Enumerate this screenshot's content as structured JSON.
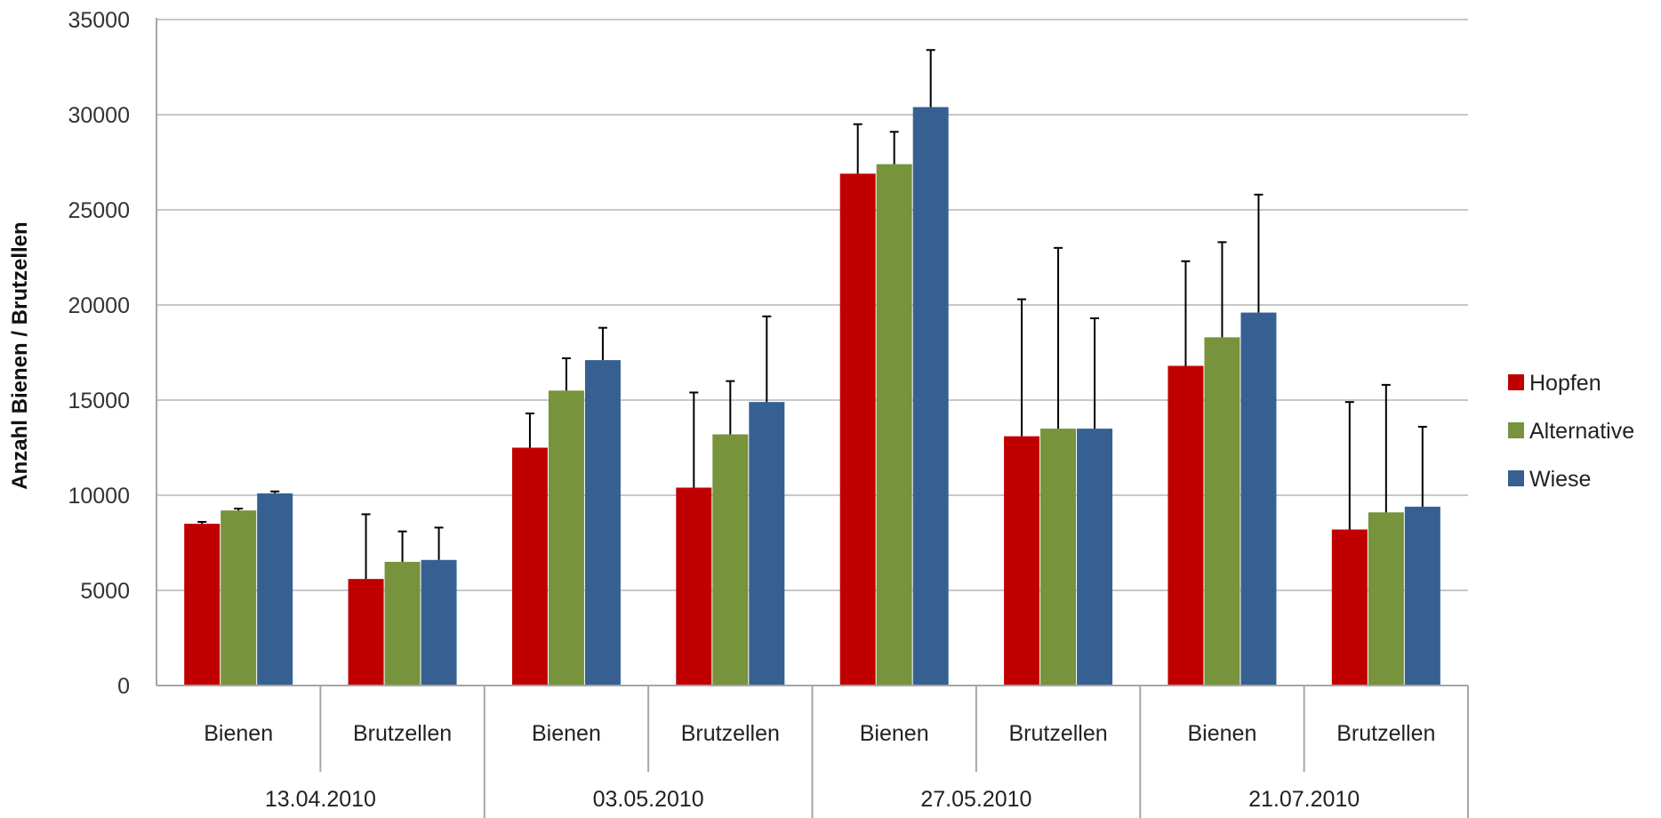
{
  "chart_data": {
    "type": "bar",
    "ylabel": "Anzahl Bienen / Brutzellen",
    "ylim": [
      0,
      35000
    ],
    "yticks": [
      "0",
      "5000",
      "10000",
      "15000",
      "20000",
      "25000",
      "30000",
      "35000"
    ],
    "grid": true,
    "legend_position": "right",
    "groups": [
      "13.04.2010",
      "03.05.2010",
      "27.05.2010",
      "21.07.2010"
    ],
    "categories": [
      "Bienen",
      "Brutzellen",
      "Bienen",
      "Brutzellen",
      "Bienen",
      "Brutzellen",
      "Bienen",
      "Brutzellen"
    ],
    "series": [
      {
        "name": "Hopfen",
        "color": "#c00000",
        "values": [
          8500,
          5600,
          12500,
          10400,
          26900,
          13100,
          16800,
          8200
        ],
        "errors": [
          100,
          3400,
          1800,
          5000,
          2600,
          7200,
          5500,
          6700
        ]
      },
      {
        "name": "Alternative",
        "color": "#77933c",
        "values": [
          9200,
          6500,
          15500,
          13200,
          27400,
          13500,
          18300,
          9100
        ],
        "errors": [
          100,
          1600,
          1700,
          2800,
          1700,
          9500,
          5000,
          6700
        ]
      },
      {
        "name": "Wiese",
        "color": "#376092",
        "values": [
          10100,
          6600,
          17100,
          14900,
          30400,
          13500,
          19600,
          9400
        ],
        "errors": [
          100,
          1700,
          1700,
          4500,
          3000,
          5800,
          6200,
          4200
        ]
      }
    ]
  }
}
